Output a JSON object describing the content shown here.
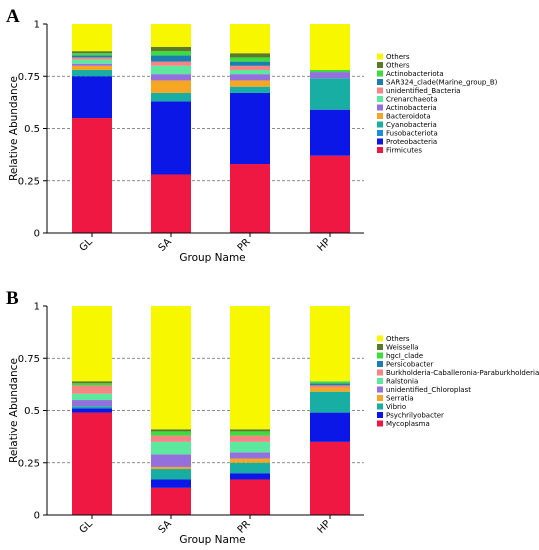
{
  "chart_data": [
    {
      "type": "bar",
      "panel_label": "A",
      "stacked": true,
      "categories": [
        "GL",
        "SA",
        "PR",
        "HP"
      ],
      "xlabel": "Group Name",
      "ylabel": "Relative Abundance",
      "ylim": [
        0,
        1
      ],
      "yticks": [
        "0",
        "0.25",
        "0.5",
        "0.75",
        "1"
      ],
      "grid": "dashed horizontal lines at 0.25, 0.5, 0.75",
      "legend_position": "right",
      "series": [
        {
          "name": "Firmicutes",
          "color": "#ee1843",
          "values": [
            0.55,
            0.28,
            0.33,
            0.37
          ]
        },
        {
          "name": "Proteobacteria",
          "color": "#0a17e6",
          "values": [
            0.2,
            0.35,
            0.34,
            0.22
          ]
        },
        {
          "name": "Fusobacteriota",
          "color": "#1a8fd8",
          "values": [
            0.0,
            0.0,
            0.0,
            0.0
          ]
        },
        {
          "name": "Cyanobacteria",
          "color": "#19aea3",
          "values": [
            0.03,
            0.04,
            0.03,
            0.15
          ]
        },
        {
          "name": "Bacteroidota",
          "color": "#f5a623",
          "values": [
            0.02,
            0.06,
            0.03,
            0.0
          ]
        },
        {
          "name": "Actinobacteria",
          "color": "#9370db",
          "values": [
            0.01,
            0.03,
            0.03,
            0.03
          ]
        },
        {
          "name": "Crenarchaeota",
          "color": "#5de8a0",
          "values": [
            0.02,
            0.04,
            0.02,
            0.0
          ]
        },
        {
          "name": "unidentified_Bacteria",
          "color": "#f58585",
          "values": [
            0.01,
            0.02,
            0.02,
            0.0
          ]
        },
        {
          "name": "SAR324_clade(Marine_group_B)",
          "color": "#1a7fb0",
          "values": [
            0.01,
            0.03,
            0.02,
            0.0
          ]
        },
        {
          "name": "Actinobacteriota",
          "color": "#3ddc3d",
          "values": [
            0.01,
            0.02,
            0.02,
            0.01
          ]
        },
        {
          "name": "Others",
          "color": "#5a7a2a",
          "values": [
            0.01,
            0.02,
            0.02,
            0.0
          ]
        },
        {
          "name": "Others",
          "color": "#f7f700",
          "values": [
            0.13,
            0.11,
            0.14,
            0.22
          ]
        }
      ]
    },
    {
      "type": "bar",
      "panel_label": "B",
      "stacked": true,
      "categories": [
        "GL",
        "SA",
        "PR",
        "HP"
      ],
      "xlabel": "Group Name",
      "ylabel": "Relative Abundance",
      "ylim": [
        0,
        1
      ],
      "yticks": [
        "0",
        "0.25",
        "0.5",
        "0.75",
        "1"
      ],
      "grid": "dashed horizontal lines at 0.25, 0.5, 0.75",
      "legend_position": "right",
      "series": [
        {
          "name": "Mycoplasma",
          "color": "#ee1843",
          "values": [
            0.49,
            0.13,
            0.17,
            0.35
          ]
        },
        {
          "name": "Psychrilyobacter",
          "color": "#0a17e6",
          "values": [
            0.02,
            0.04,
            0.03,
            0.14
          ]
        },
        {
          "name": "Vibrio",
          "color": "#19aea3",
          "values": [
            0.01,
            0.05,
            0.05,
            0.1
          ]
        },
        {
          "name": "Serratia",
          "color": "#f5a623",
          "values": [
            0.0,
            0.01,
            0.02,
            0.02
          ]
        },
        {
          "name": "unidentified_Chloroplast",
          "color": "#9370db",
          "values": [
            0.03,
            0.06,
            0.03,
            0.0
          ]
        },
        {
          "name": "Ralstonia",
          "color": "#5de8a0",
          "values": [
            0.03,
            0.06,
            0.05,
            0.0
          ]
        },
        {
          "name": "Burkholderia-Caballeronia-Paraburkholderia",
          "color": "#f58585",
          "values": [
            0.04,
            0.03,
            0.03,
            0.01
          ]
        },
        {
          "name": "Persicobacter",
          "color": "#1a7fb0",
          "values": [
            0.0,
            0.0,
            0.0,
            0.01
          ]
        },
        {
          "name": "hgcI_clade",
          "color": "#3ddc3d",
          "values": [
            0.01,
            0.02,
            0.02,
            0.01
          ]
        },
        {
          "name": "Weissella",
          "color": "#5a7a2a",
          "values": [
            0.01,
            0.01,
            0.01,
            0.0
          ]
        },
        {
          "name": "Others",
          "color": "#f7f700",
          "values": [
            0.36,
            0.59,
            0.59,
            0.36
          ]
        }
      ]
    }
  ]
}
